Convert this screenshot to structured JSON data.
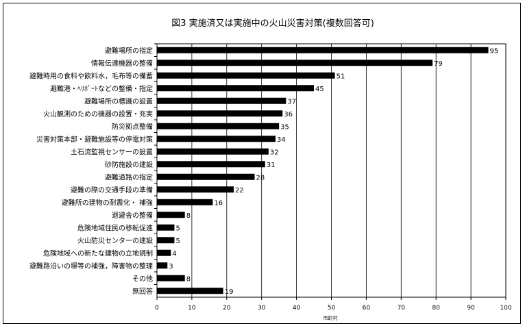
{
  "chart_data": {
    "type": "bar",
    "orientation": "horizontal",
    "title": "図3  実施済又は実施中の火山災害対策(複数回答可)",
    "xlabel": "市町村",
    "ylabel": "",
    "xlim": [
      0,
      100
    ],
    "xticks": [
      0,
      10,
      20,
      30,
      40,
      50,
      60,
      70,
      80,
      90,
      100
    ],
    "grid": "vertical",
    "bar_color": "#000000",
    "categories": [
      "避難場所の指定",
      "情報伝達機器の整備",
      "避難時用の食料や飲料水，毛布等の備蓄",
      "避難港・ﾍﾘﾎﾟｰﾄなどの整備・指定",
      "避難場所の標識の設置",
      "火山観測のための機器の設置・充実",
      "防災拠点整備",
      "災害対策本部・避難施設等の停電対策",
      "土石流監視センサーの設置",
      "砂防施設の建設",
      "避難道路の指定",
      "避難の際の交通手段の準備",
      "避難所の建物の耐震化・ 補強",
      "退避舎の整備",
      "危険地域住民の移転促進",
      "火山防災センターの建設",
      "危険地域への新たな建物の立地規制",
      "避難路沿いの塀等の補強，障害物の整理",
      "その他",
      "無回答"
    ],
    "values": [
      95,
      79,
      51,
      45,
      37,
      36,
      35,
      34,
      32,
      31,
      28,
      22,
      16,
      8,
      5,
      5,
      4,
      3,
      8,
      19
    ]
  }
}
